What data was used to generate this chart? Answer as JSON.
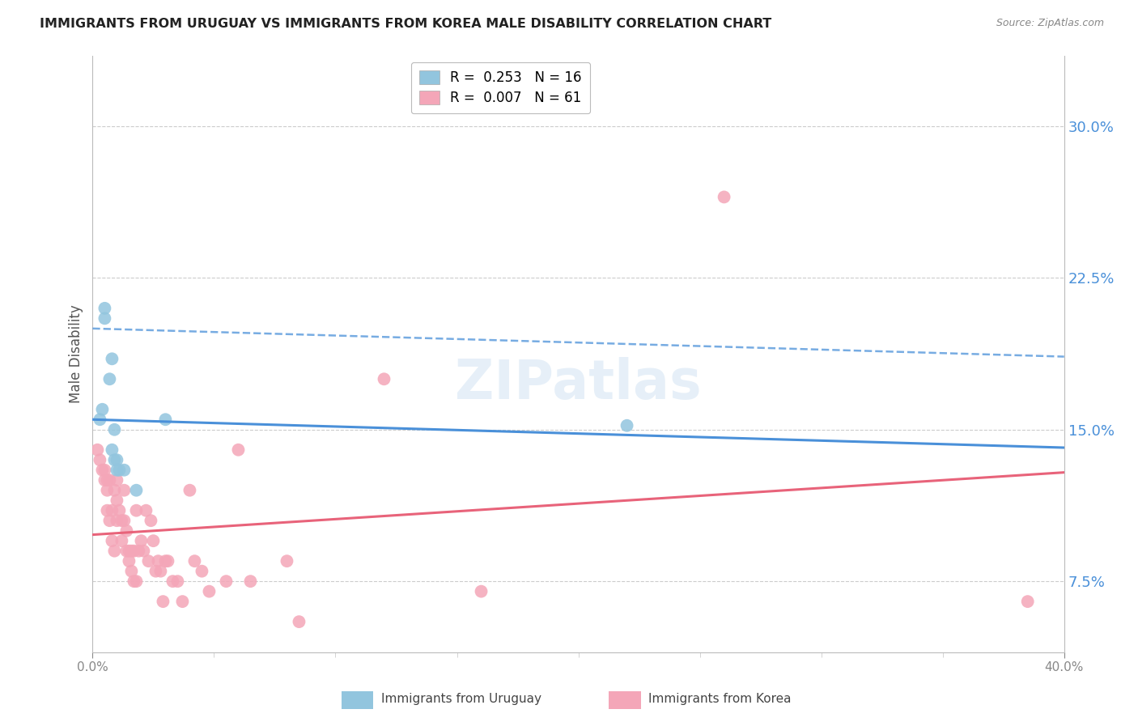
{
  "title": "IMMIGRANTS FROM URUGUAY VS IMMIGRANTS FROM KOREA MALE DISABILITY CORRELATION CHART",
  "source": "Source: ZipAtlas.com",
  "ylabel": "Male Disability",
  "ytick_labels": [
    "7.5%",
    "15.0%",
    "22.5%",
    "30.0%"
  ],
  "ytick_values": [
    0.075,
    0.15,
    0.225,
    0.3
  ],
  "xlim": [
    0.0,
    0.4
  ],
  "ylim": [
    0.04,
    0.335
  ],
  "legend_uruguay": "R =  0.253   N = 16",
  "legend_korea": "R =  0.007   N = 61",
  "legend_label_uruguay": "Immigrants from Uruguay",
  "legend_label_korea": "Immigrants from Korea",
  "uruguay_color": "#92c5de",
  "korea_color": "#f4a6b8",
  "trendline_uruguay_color": "#4a90d9",
  "trendline_korea_color": "#e8637a",
  "watermark": "ZIPatlas",
  "uruguay_x": [
    0.003,
    0.004,
    0.005,
    0.005,
    0.007,
    0.008,
    0.008,
    0.009,
    0.009,
    0.01,
    0.01,
    0.011,
    0.013,
    0.018,
    0.03,
    0.22
  ],
  "uruguay_y": [
    0.155,
    0.16,
    0.205,
    0.21,
    0.175,
    0.185,
    0.14,
    0.15,
    0.135,
    0.135,
    0.13,
    0.13,
    0.13,
    0.12,
    0.155,
    0.152
  ],
  "korea_x": [
    0.002,
    0.003,
    0.004,
    0.005,
    0.005,
    0.006,
    0.006,
    0.006,
    0.007,
    0.007,
    0.008,
    0.008,
    0.009,
    0.009,
    0.01,
    0.01,
    0.01,
    0.011,
    0.012,
    0.012,
    0.013,
    0.013,
    0.014,
    0.014,
    0.015,
    0.015,
    0.016,
    0.016,
    0.017,
    0.017,
    0.018,
    0.018,
    0.019,
    0.02,
    0.021,
    0.022,
    0.023,
    0.024,
    0.025,
    0.026,
    0.027,
    0.028,
    0.029,
    0.03,
    0.031,
    0.033,
    0.035,
    0.037,
    0.04,
    0.042,
    0.045,
    0.048,
    0.055,
    0.06,
    0.065,
    0.08,
    0.085,
    0.12,
    0.16,
    0.26,
    0.385
  ],
  "korea_y": [
    0.14,
    0.135,
    0.13,
    0.13,
    0.125,
    0.125,
    0.12,
    0.11,
    0.125,
    0.105,
    0.11,
    0.095,
    0.09,
    0.12,
    0.125,
    0.115,
    0.105,
    0.11,
    0.105,
    0.095,
    0.12,
    0.105,
    0.1,
    0.09,
    0.09,
    0.085,
    0.09,
    0.08,
    0.09,
    0.075,
    0.075,
    0.11,
    0.09,
    0.095,
    0.09,
    0.11,
    0.085,
    0.105,
    0.095,
    0.08,
    0.085,
    0.08,
    0.065,
    0.085,
    0.085,
    0.075,
    0.075,
    0.065,
    0.12,
    0.085,
    0.08,
    0.07,
    0.075,
    0.14,
    0.075,
    0.085,
    0.055,
    0.175,
    0.07,
    0.265,
    0.065
  ]
}
